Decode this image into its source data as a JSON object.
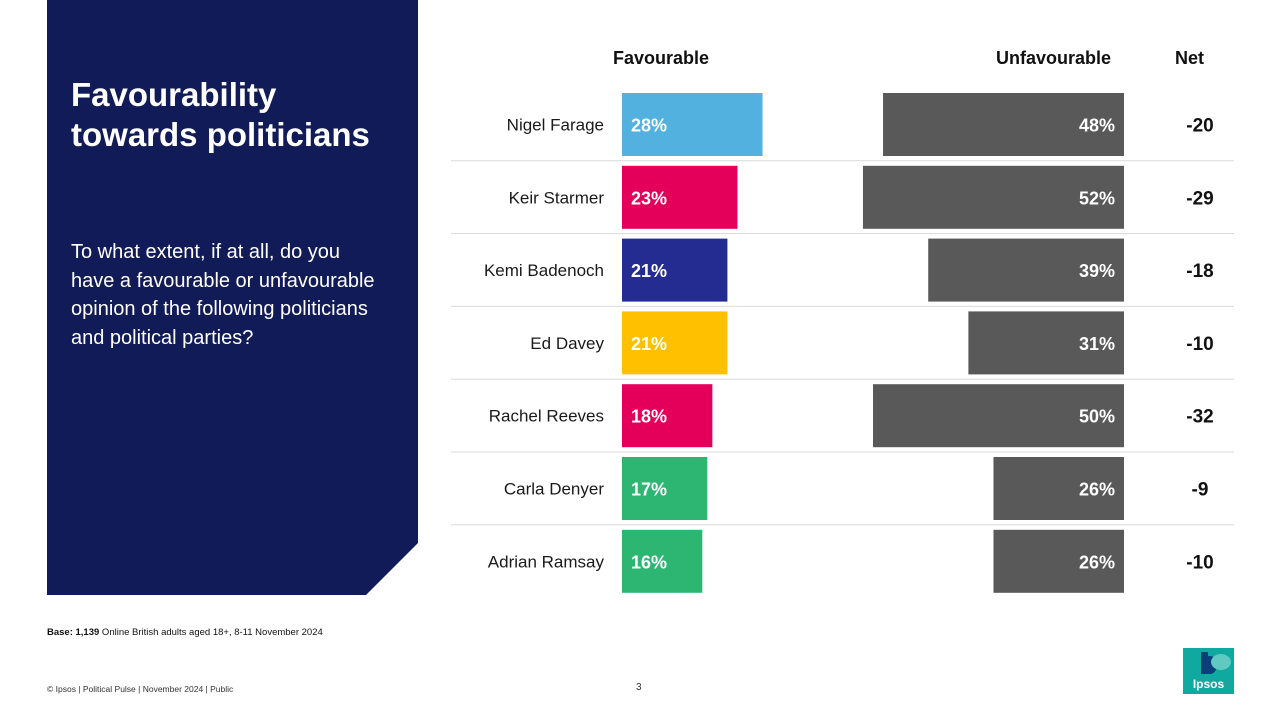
{
  "panel": {
    "title_line1": "Favourability",
    "title_line2": "towards politicians",
    "question": "To what extent, if at all, do you have a favourable or unfavourable opinion of the following politicians and political parties?"
  },
  "headers": {
    "favourable": "Favourable",
    "unfavourable": "Unfavourable",
    "net": "Net"
  },
  "chart_data": {
    "type": "bar",
    "categories": [
      "Nigel Farage",
      "Keir Starmer",
      "Kemi Badenoch",
      "Ed Davey",
      "Rachel Reeves",
      "Carla Denyer",
      "Adrian Ramsay"
    ],
    "series": [
      {
        "name": "Favourable",
        "values": [
          28,
          23,
          21,
          21,
          18,
          17,
          16
        ],
        "labels": [
          "28%",
          "23%",
          "21%",
          "21%",
          "18%",
          "17%",
          "16%"
        ],
        "colors": [
          "#52b1df",
          "#e4005a",
          "#242c91",
          "#ffc000",
          "#e4005a",
          "#2db672",
          "#2db672"
        ]
      },
      {
        "name": "Unfavourable",
        "values": [
          48,
          52,
          39,
          31,
          50,
          26,
          26
        ],
        "labels": [
          "48%",
          "52%",
          "39%",
          "31%",
          "50%",
          "26%",
          "26%"
        ],
        "colors": [
          "#595959",
          "#595959",
          "#595959",
          "#595959",
          "#595959",
          "#595959",
          "#595959"
        ]
      }
    ],
    "net": [
      "-20",
      "-29",
      "-18",
      "-10",
      "-32",
      "-9",
      "-10"
    ],
    "divider_color": "#d9d9d9"
  },
  "base": {
    "label": "Base: 1,139",
    "text": " Online British adults aged 18+,  8-11 November 2024"
  },
  "footer": {
    "left": "© Ipsos | Political Pulse | November 2024 | Public",
    "page": "3"
  },
  "logo": {
    "text": "Ipsos",
    "color": "#10a9a0"
  },
  "colors": {
    "panel": "#111b57",
    "unfavourable": "#595959"
  }
}
